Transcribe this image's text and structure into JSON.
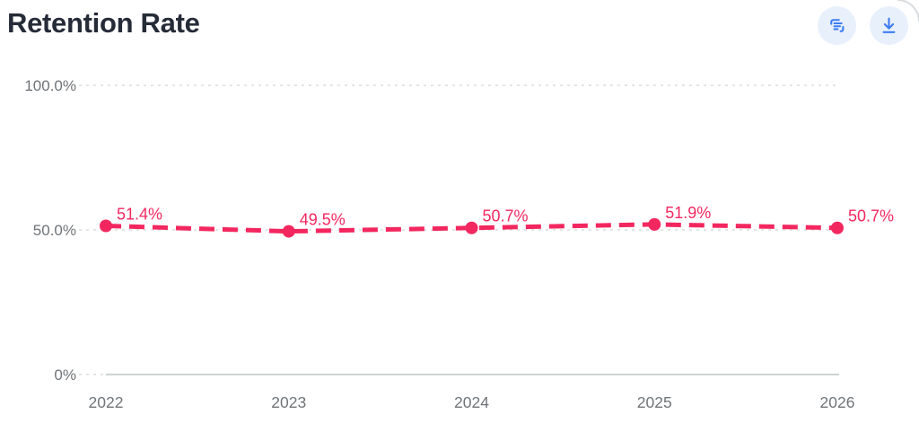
{
  "header": {
    "title": "Retention Rate",
    "buttons": [
      {
        "name": "copy-data-button",
        "icon": "copy-list-icon"
      },
      {
        "name": "download-button",
        "icon": "download-icon"
      }
    ]
  },
  "colors": {
    "line_pink": "#F3275F",
    "icon_blue": "#3D7CF2",
    "button_bg": "#E8F0FC",
    "grid_dotted": "#D7DEDA",
    "axis_solid": "#CDD4D2",
    "axis_text": "#6F7478",
    "title_text": "#262B38"
  },
  "chart_data": {
    "type": "line",
    "line_style": "dashed",
    "title": "Retention Rate",
    "xlabel": "",
    "ylabel": "",
    "categories": [
      "2022",
      "2023",
      "2024",
      "2025",
      "2026"
    ],
    "values": [
      51.4,
      49.5,
      50.7,
      51.9,
      50.7
    ],
    "point_labels": [
      "51.4%",
      "49.5%",
      "50.7%",
      "51.9%",
      "50.7%"
    ],
    "ylim": [
      0,
      100
    ],
    "y_ticks": [
      {
        "label": "100.0%",
        "value": 100
      },
      {
        "label": "50.0%",
        "value": 50
      },
      {
        "label": "0%",
        "value": 0
      }
    ],
    "grid": "horizontal-dotted",
    "legend": "none",
    "line_color": "#F3275F"
  }
}
